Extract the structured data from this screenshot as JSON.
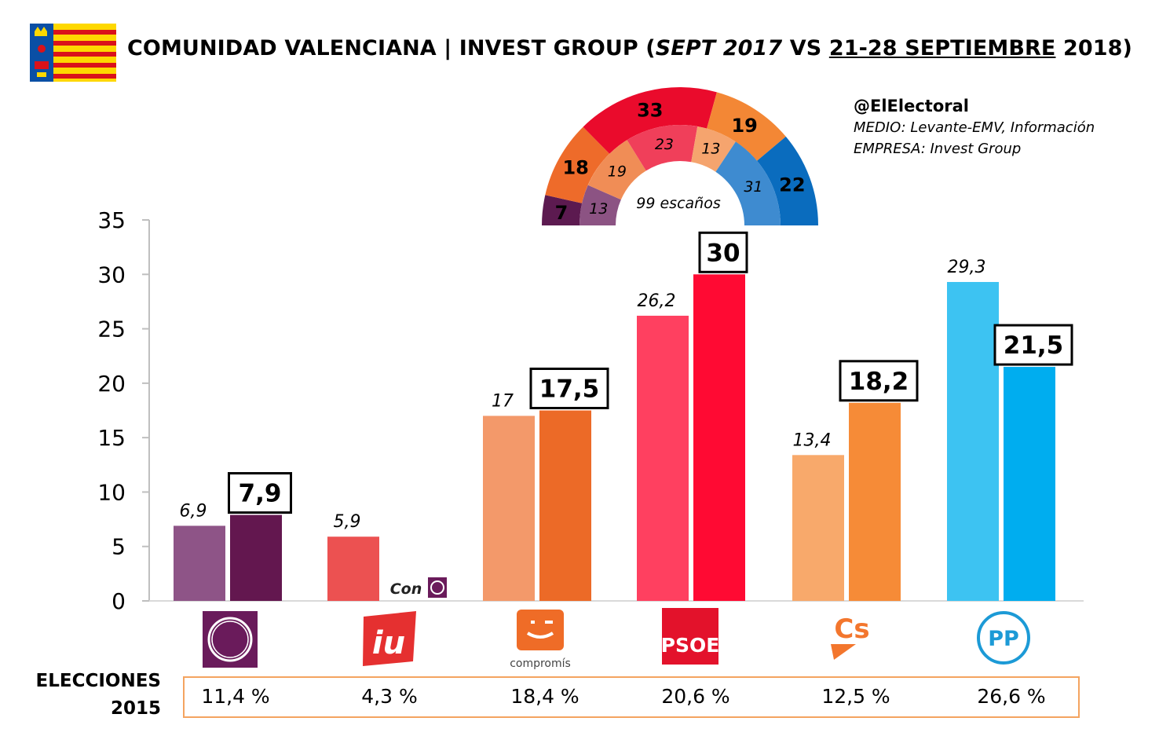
{
  "title": {
    "part1": "COMUNIDAD VALENCIANA | INVEST GROUP (",
    "italic": "SEPT 2017",
    "mid": " VS ",
    "underlined": "21-28 SEPTIEMBRE",
    "end": " 2018)"
  },
  "credits": {
    "handle": "@ElElectoral",
    "medio": "MEDIO: Levante-EMV, Información",
    "empresa": "EMPRESA: Invest Group"
  },
  "hemicycle": {
    "center_label": "99 escaños",
    "outer": [
      {
        "party": "Podemos",
        "seats": 7,
        "color": "#5c1a50"
      },
      {
        "party": "Compromís",
        "seats": 18,
        "color": "#ee6b2a"
      },
      {
        "party": "PSOE",
        "seats": 33,
        "color": "#ea0b2c"
      },
      {
        "party": "Cs",
        "seats": 19,
        "color": "#f38735"
      },
      {
        "party": "PP",
        "seats": 22,
        "color": "#0a6cbe"
      }
    ],
    "inner": [
      {
        "party": "Podemos",
        "seats": 13,
        "color": "#8c5383"
      },
      {
        "party": "Compromís",
        "seats": 19,
        "color": "#f08d56"
      },
      {
        "party": "PSOE",
        "seats": 23,
        "color": "#f03f5a"
      },
      {
        "party": "Cs",
        "seats": 13,
        "color": "#f5a46e"
      },
      {
        "party": "PP",
        "seats": 31,
        "color": "#3e8bd0"
      }
    ]
  },
  "chart_data": {
    "type": "bar",
    "categories": [
      "Podemos",
      "EUPV",
      "Compromís",
      "PSOE",
      "Cs",
      "PP"
    ],
    "series": [
      {
        "name": "SEPT 2017",
        "values": [
          6.9,
          5.9,
          17,
          26.2,
          13.4,
          29.3
        ],
        "labels": [
          "6,9",
          "5,9",
          "17",
          "26,2",
          "13,4",
          "29,3"
        ]
      },
      {
        "name": "21-28 SEPTIEMBRE 2018",
        "values": [
          7.9,
          null,
          17.5,
          30,
          18.2,
          21.5
        ],
        "labels": [
          "7,9",
          "",
          "17,5",
          "30",
          "18,2",
          "21,5"
        ]
      }
    ],
    "colors_2017": [
      "#8e5487",
      "#ec5151",
      "#f3996a",
      "#ff4060",
      "#f8a96b",
      "#3dc3f2"
    ],
    "colors_2018": [
      "#63174f",
      "#e03030",
      "#ec6a27",
      "#ff0a33",
      "#f68b37",
      "#00adef"
    ],
    "yticks": [
      "0",
      "5",
      "10",
      "15",
      "20",
      "25",
      "30",
      "35"
    ],
    "ylim": [
      0,
      35
    ],
    "grid": false,
    "legend": "none",
    "annotation": "Con"
  },
  "logos": {
    "eupv": "iu",
    "compromis": "compromís",
    "psoe": "PSOE",
    "cs": "Cs",
    "pp": "PP"
  },
  "elections_2015": {
    "label_line1": "ELECCIONES",
    "label_line2": "2015",
    "values": [
      "11,4 %",
      "4,3 %",
      "18,4 %",
      "20,6 %",
      "12,5 %",
      "26,6 %"
    ]
  }
}
